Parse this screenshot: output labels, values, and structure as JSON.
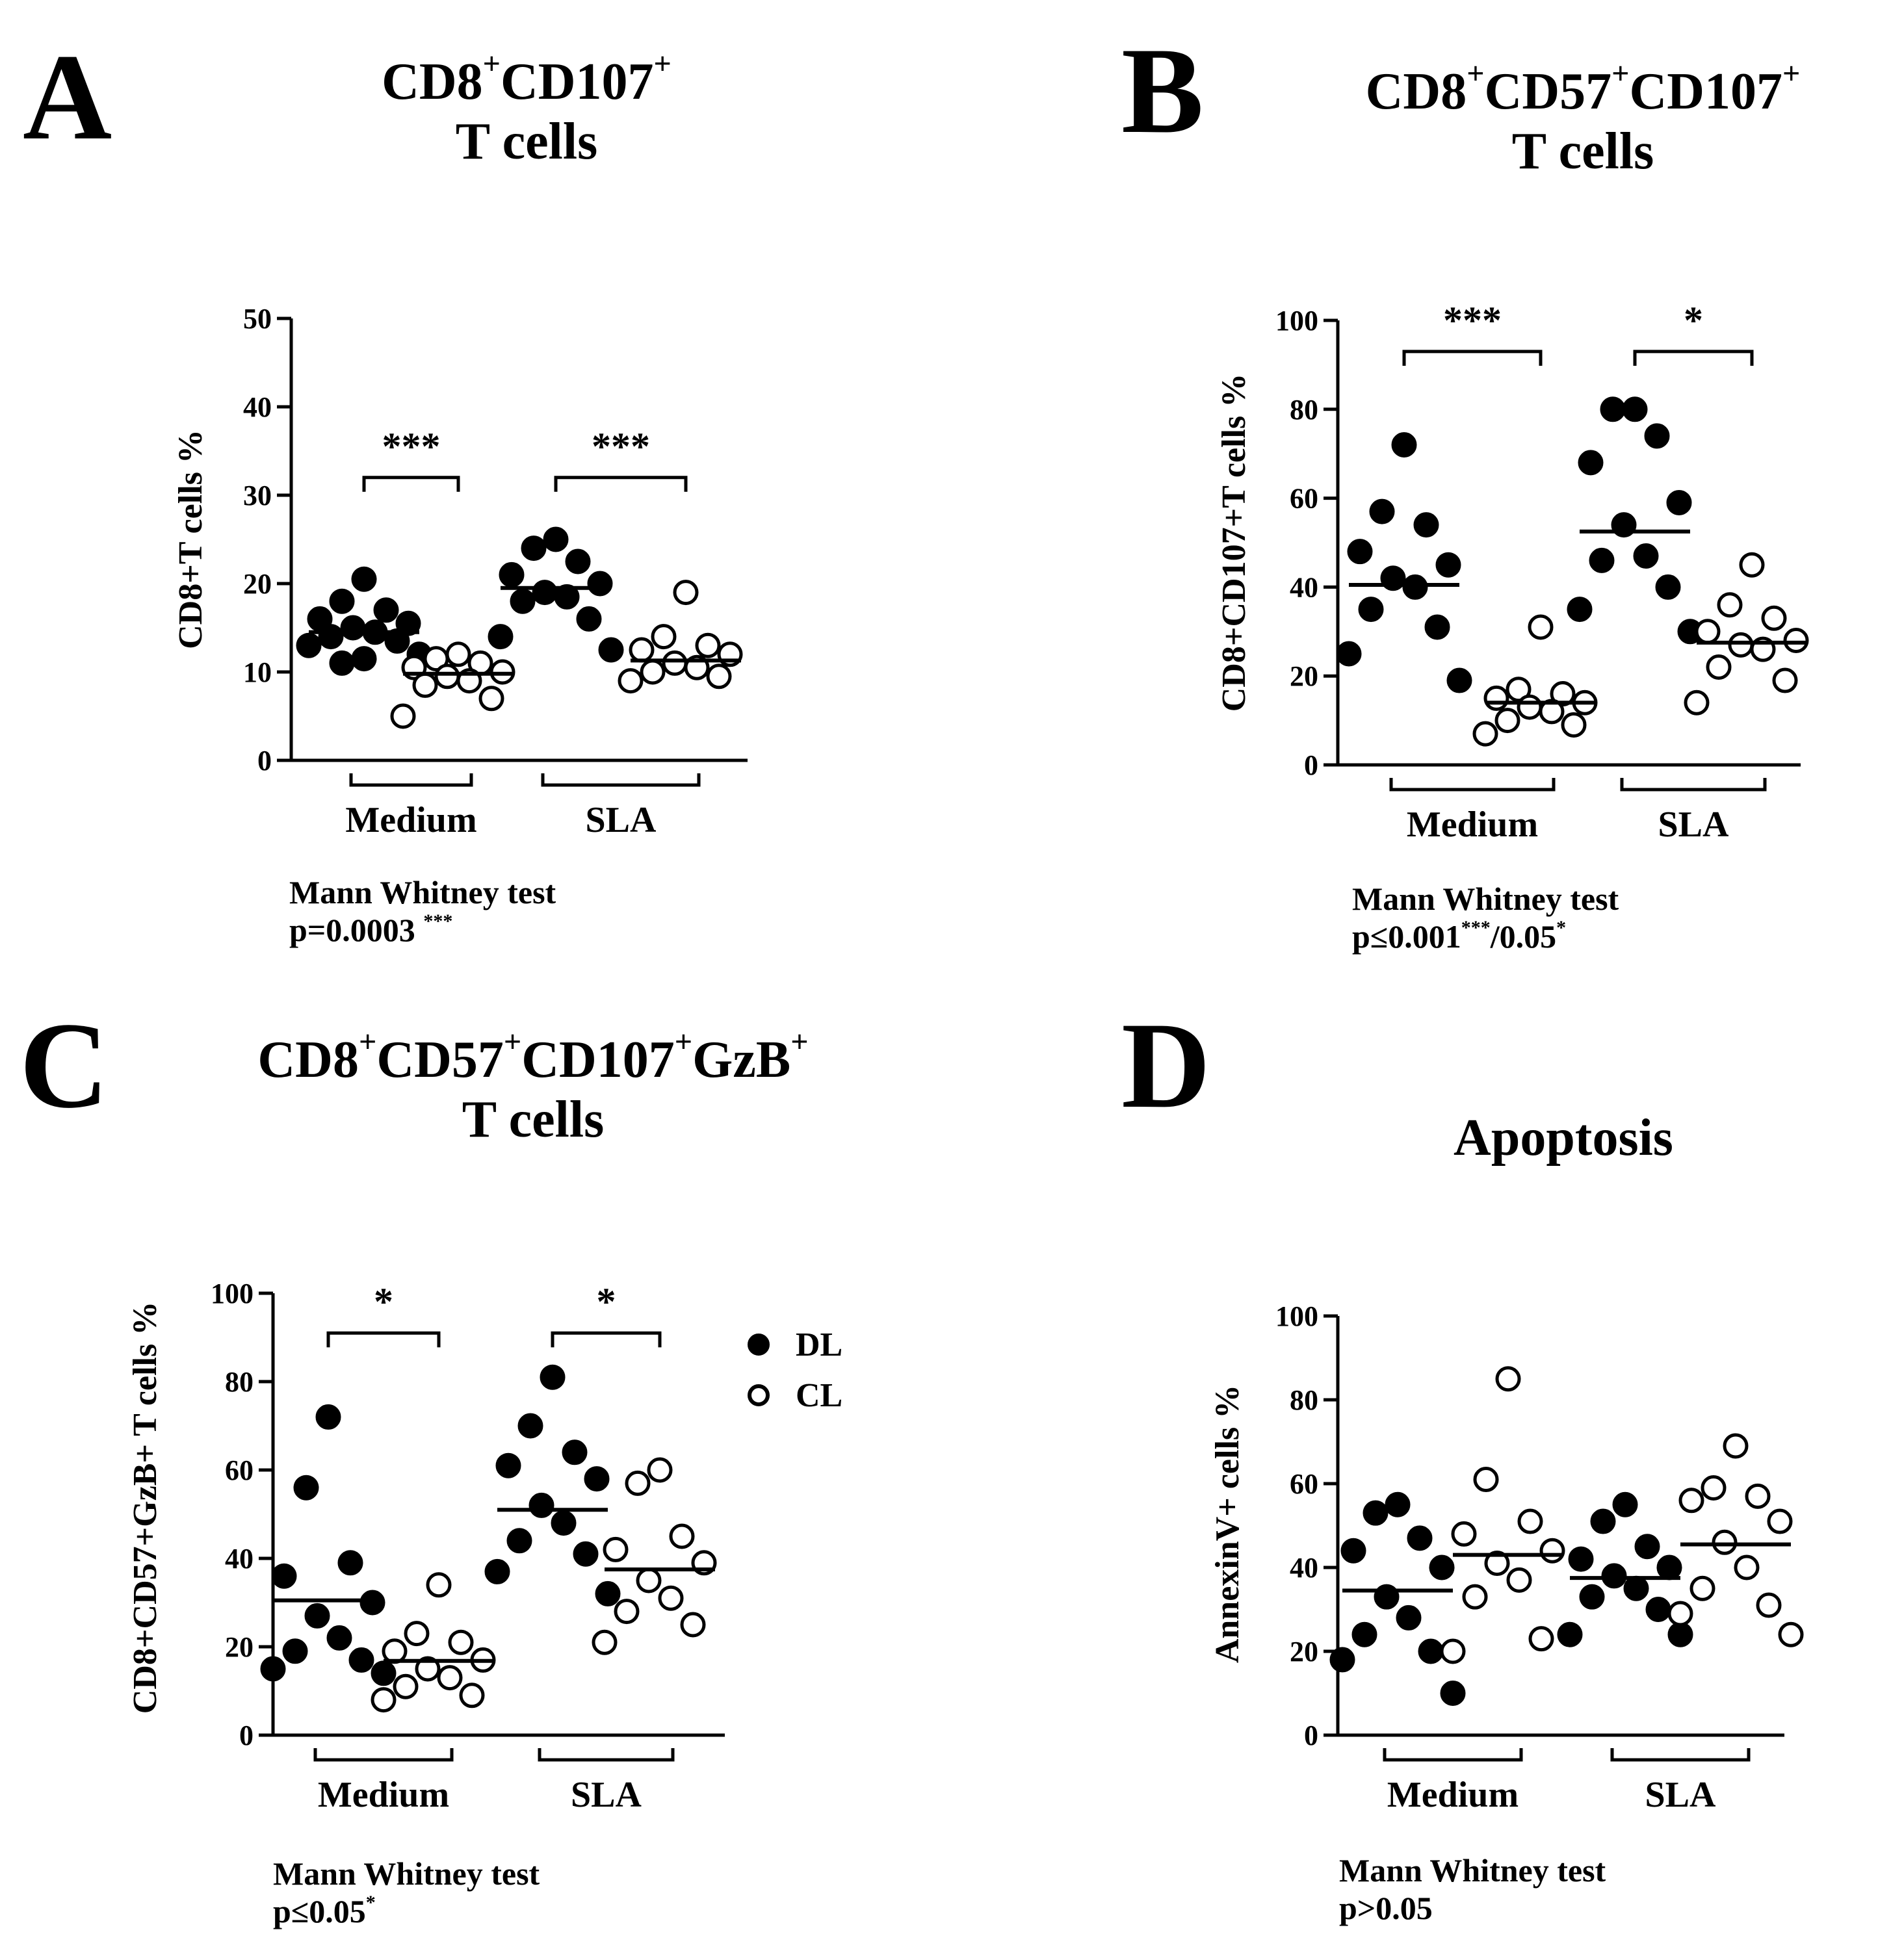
{
  "legend": {
    "dl": "DL",
    "cl": "CL"
  },
  "panels": {
    "A": {
      "letter": "A",
      "title_parts": [
        "CD8",
        "+",
        "CD107",
        "+"
      ],
      "title_line2": "T cells",
      "stat_line1": "Mann Whitney test",
      "stat_line2": "p=0.0003",
      "stat_sup": "***"
    },
    "B": {
      "letter": "B",
      "title_parts": [
        "CD8",
        "+",
        "CD57",
        "+",
        "CD107",
        "+"
      ],
      "title_line2": "T cells",
      "stat_line1": "Mann Whitney test",
      "stat_line2": "p≤0.001",
      "stat_sup": "***",
      "stat_line2b": "/0.05",
      "stat_sup2": "*"
    },
    "C": {
      "letter": "C",
      "title_parts": [
        "CD8",
        "+",
        "CD57",
        "+",
        "CD107",
        "+",
        "GzB",
        "+"
      ],
      "title_line2": "T cells",
      "stat_line1": "Mann Whitney test",
      "stat_line2": "p≤0.05",
      "stat_sup": "*"
    },
    "D": {
      "letter": "D",
      "title_line1": "Apoptosis",
      "stat_line1": "Mann Whitney test",
      "stat_line2": "p>0.05"
    }
  },
  "chart_data": [
    {
      "panel": "A",
      "type": "scatter",
      "title": "CD8+CD107+ T cells",
      "ylabel": "CD8+T cells %",
      "ylim": [
        0,
        50
      ],
      "yticks": [
        "0",
        "10",
        "20",
        "30",
        "40",
        "50"
      ],
      "groups": [
        "Medium",
        "SLA"
      ],
      "series": [
        {
          "name": "DL",
          "group": "Medium",
          "values": [
            20.5,
            18,
            17,
            16,
            15.5,
            15,
            14.5,
            14,
            13.5,
            13,
            12,
            11.5,
            11
          ],
          "mean": 14.5
        },
        {
          "name": "CL",
          "group": "Medium",
          "values": [
            12,
            11.5,
            11,
            10.5,
            10,
            9.5,
            9,
            8.5,
            7,
            5
          ],
          "mean": 9.8
        },
        {
          "name": "DL",
          "group": "SLA",
          "values": [
            25,
            24,
            22.5,
            21,
            20,
            19,
            18.5,
            18,
            16,
            14,
            12.5
          ],
          "mean": 19.5
        },
        {
          "name": "CL",
          "group": "SLA",
          "values": [
            19,
            14,
            13,
            12.5,
            12,
            11,
            10.5,
            10,
            9.5,
            9
          ],
          "mean": 11.3
        }
      ],
      "significance": [
        {
          "group": "Medium",
          "label": "***",
          "y": 32
        },
        {
          "group": "SLA",
          "label": "***",
          "y": 32
        }
      ]
    },
    {
      "panel": "B",
      "type": "scatter",
      "title": "CD8+CD57+CD107+ T cells",
      "ylabel": "CD8+CD107+T cells %",
      "ylim": [
        0,
        100
      ],
      "yticks": [
        "0",
        "20",
        "40",
        "60",
        "80",
        "100"
      ],
      "groups": [
        "Medium",
        "SLA"
      ],
      "series": [
        {
          "name": "DL",
          "group": "Medium",
          "values": [
            72,
            57,
            54,
            48,
            45,
            42,
            40,
            35,
            31,
            25,
            19
          ],
          "mean": 40.5
        },
        {
          "name": "CL",
          "group": "Medium",
          "values": [
            31,
            17,
            16,
            15,
            14,
            13,
            12,
            10,
            9,
            7
          ],
          "mean": 14
        },
        {
          "name": "DL",
          "group": "SLA",
          "values": [
            80,
            80,
            74,
            68,
            59,
            54,
            47,
            46,
            40,
            35,
            30
          ],
          "mean": 52.5
        },
        {
          "name": "CL",
          "group": "SLA",
          "values": [
            45,
            36,
            33,
            30,
            28,
            27,
            26,
            22,
            19,
            14
          ],
          "mean": 27.5
        }
      ],
      "significance": [
        {
          "group": "Medium",
          "label": "***",
          "y": 93
        },
        {
          "group": "SLA",
          "label": "*",
          "y": 93
        }
      ]
    },
    {
      "panel": "C",
      "type": "scatter",
      "title": "CD8+CD57+CD107+GzB+ T cells",
      "ylabel": "CD8+CD57+GzB+ T cells %",
      "ylim": [
        0,
        100
      ],
      "yticks": [
        "0",
        "20",
        "40",
        "60",
        "80",
        "100"
      ],
      "groups": [
        "Medium",
        "SLA"
      ],
      "series": [
        {
          "name": "DL",
          "group": "Medium",
          "values": [
            72,
            56,
            39,
            36,
            30,
            27,
            22,
            19,
            17,
            15,
            14
          ],
          "mean": 30.5
        },
        {
          "name": "CL",
          "group": "Medium",
          "values": [
            34,
            23,
            21,
            19,
            17,
            15,
            13,
            11,
            9,
            8
          ],
          "mean": 16.8
        },
        {
          "name": "DL",
          "group": "SLA",
          "values": [
            81,
            70,
            64,
            61,
            58,
            52,
            48,
            44,
            41,
            37,
            32
          ],
          "mean": 51
        },
        {
          "name": "CL",
          "group": "SLA",
          "values": [
            60,
            57,
            45,
            42,
            39,
            35,
            31,
            28,
            25,
            21
          ],
          "mean": 37.5
        }
      ],
      "significance": [
        {
          "group": "Medium",
          "label": "*",
          "y": 91
        },
        {
          "group": "SLA",
          "label": "*",
          "y": 91
        }
      ]
    },
    {
      "panel": "D",
      "type": "scatter",
      "title": "Apoptosis",
      "ylabel": "AnnexinV+ cells %",
      "ylim": [
        0,
        100
      ],
      "yticks": [
        "0",
        "20",
        "40",
        "60",
        "80",
        "100"
      ],
      "groups": [
        "Medium",
        "SLA"
      ],
      "series": [
        {
          "name": "DL",
          "group": "Medium",
          "values": [
            55,
            53,
            47,
            44,
            40,
            33,
            28,
            24,
            20,
            18,
            10
          ],
          "mean": 34.5
        },
        {
          "name": "CL",
          "group": "Medium",
          "values": [
            85,
            61,
            51,
            48,
            44,
            41,
            37,
            33,
            23,
            20
          ],
          "mean": 43
        },
        {
          "name": "DL",
          "group": "SLA",
          "values": [
            55,
            51,
            45,
            42,
            40,
            38,
            35,
            33,
            30,
            24,
            24
          ],
          "mean": 37.5
        },
        {
          "name": "CL",
          "group": "SLA",
          "values": [
            69,
            59,
            57,
            56,
            51,
            46,
            40,
            35,
            31,
            29,
            24
          ],
          "mean": 45.5
        }
      ],
      "significance": []
    }
  ]
}
